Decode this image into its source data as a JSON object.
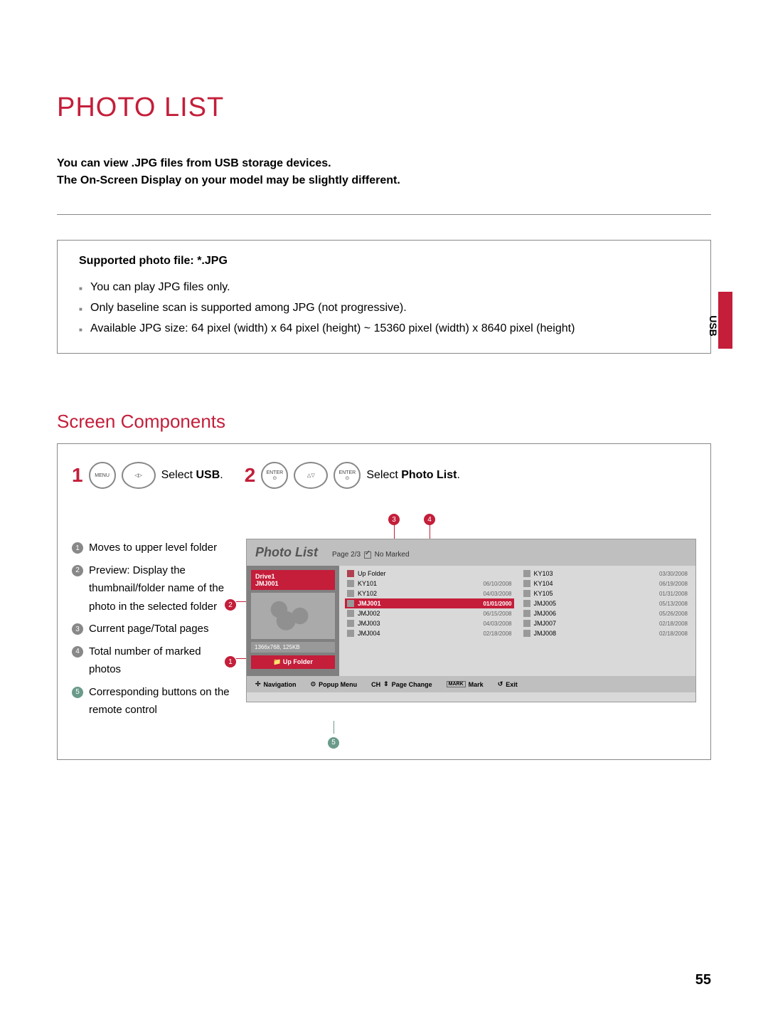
{
  "title": "PHOTO LIST",
  "intro_line1": "You can view .JPG files from USB storage devices.",
  "intro_line2": "The On-Screen Display on your model may be slightly different.",
  "support_box": {
    "title": "Supported photo file: *.JPG",
    "items": [
      "You can play JPG files only.",
      "Only baseline scan is supported among JPG (not progressive).",
      "Available JPG size: 64 pixel (width) x 64 pixel (height) ~ 15360 pixel (width) x 8640 pixel (height)"
    ]
  },
  "side_label": "USB",
  "section_title": "Screen Components",
  "steps": {
    "s1": {
      "num": "1",
      "menu": "MENU",
      "text_pre": "Select ",
      "text_b": "USB",
      "text_post": "."
    },
    "s2": {
      "num": "2",
      "enter": "ENTER",
      "text_pre": "Select ",
      "text_b": "Photo List",
      "text_post": "."
    }
  },
  "legend": [
    "Moves to upper level folder",
    "Preview: Display the thumbnail/folder name of the photo in the selected folder",
    "Current page/Total pages",
    "Total number of marked photos",
    "Corresponding buttons on the remote control"
  ],
  "screen": {
    "title": "Photo List",
    "page_info_pre": "Page 2/3",
    "page_info_post": "No Marked",
    "drive": "Drive1",
    "drive_sub": "JMJ001",
    "file_info": "1366x768, 125KB",
    "up_folder": "Up Folder",
    "files_left": [
      {
        "name": "Up Folder",
        "date": "",
        "folder": true
      },
      {
        "name": "KY101",
        "date": "06/10/2008"
      },
      {
        "name": "KY102",
        "date": "04/03/2008"
      },
      {
        "name": "JMJ001",
        "date": "01/01/2000",
        "hl": true
      },
      {
        "name": "JMJ002",
        "date": "06/15/2008"
      },
      {
        "name": "JMJ003",
        "date": "04/03/2008"
      },
      {
        "name": "JMJ004",
        "date": "02/18/2008"
      }
    ],
    "files_right": [
      {
        "name": "KY103",
        "date": "03/30/2008"
      },
      {
        "name": "KY104",
        "date": "06/19/2008"
      },
      {
        "name": "KY105",
        "date": "01/31/2008"
      },
      {
        "name": "JMJ005",
        "date": "05/13/2008"
      },
      {
        "name": "JMJ006",
        "date": "05/26/2008"
      },
      {
        "name": "JMJ007",
        "date": "02/18/2008"
      },
      {
        "name": "JMJ008",
        "date": "02/18/2008"
      }
    ],
    "footer": {
      "nav": "Navigation",
      "popup": "Popup Menu",
      "ch": "CH",
      "page": "Page Change",
      "mark_btn": "MARK",
      "mark": "Mark",
      "exit": "Exit"
    }
  },
  "callouts": {
    "c1": "1",
    "c2": "2",
    "c3": "3",
    "c4": "4",
    "c5": "5"
  },
  "page_num": "55",
  "colors": {
    "accent": "#c41e3a",
    "grey": "#888888"
  }
}
